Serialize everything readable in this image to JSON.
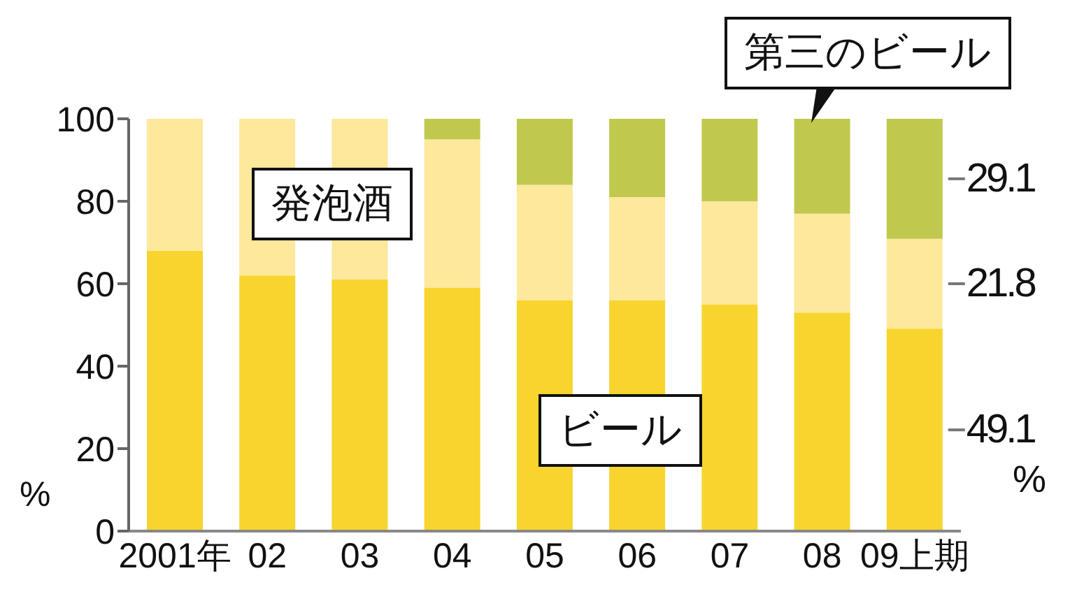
{
  "chart_data": {
    "type": "bar",
    "stacked": true,
    "legend": false,
    "grid": false,
    "ylabel": "%",
    "categories": [
      "2001年",
      "02",
      "03",
      "04",
      "05",
      "06",
      "07",
      "08",
      "09上期"
    ],
    "ylim": [
      0,
      100
    ],
    "yticks": [
      0,
      20,
      40,
      60,
      80,
      100
    ],
    "series": [
      {
        "name": "ビール",
        "color": "#f8d42e",
        "values": [
          68,
          62,
          61,
          59,
          56,
          56,
          55,
          53,
          49.1
        ],
        "value_labels": [
          null,
          null,
          null,
          null,
          null,
          null,
          null,
          null,
          "49.1"
        ]
      },
      {
        "name": "発泡酒",
        "color": "#fde89c",
        "values": [
          32,
          38,
          39,
          36,
          28,
          25,
          25,
          24,
          21.8
        ],
        "value_labels": [
          null,
          null,
          null,
          null,
          null,
          null,
          null,
          null,
          "21.8"
        ]
      },
      {
        "name": "第三のビール",
        "color": "#c0c94e",
        "values": [
          0,
          0,
          0,
          5,
          16,
          19,
          20,
          23,
          29.1
        ],
        "value_labels": [
          null,
          null,
          null,
          null,
          null,
          null,
          null,
          null,
          "29.1"
        ]
      }
    ],
    "annotations": [
      "%"
    ]
  }
}
